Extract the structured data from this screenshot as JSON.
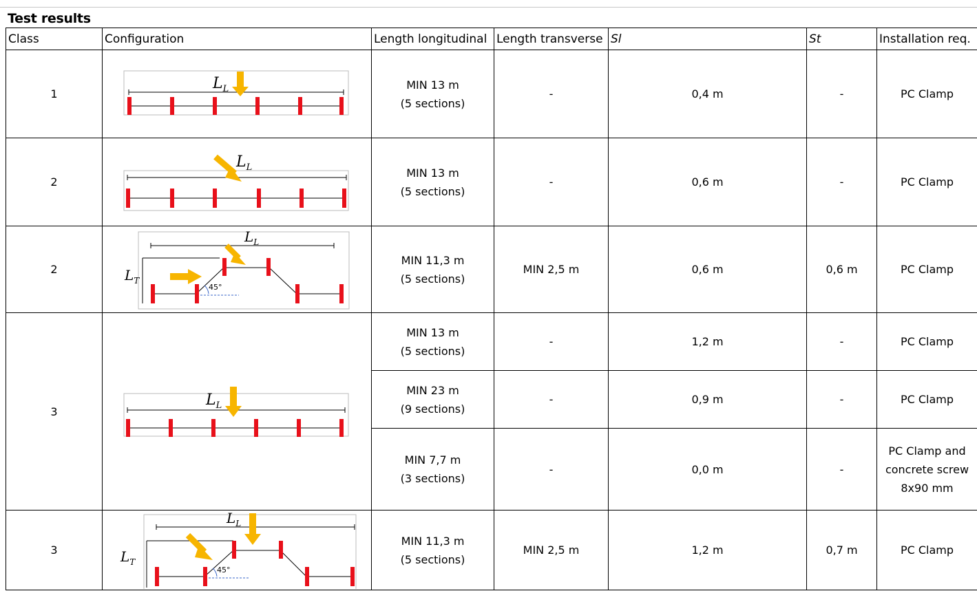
{
  "title": "Test results",
  "columns": [
    "Class",
    "Configuration",
    "Length longitudinal",
    "Length transverse",
    "Sl",
    "St",
    "Installation req."
  ],
  "diagram": {
    "label_longitudinal": "L",
    "label_transverse": "L",
    "sub_longitudinal": "L",
    "sub_transverse": "T",
    "angle": "45°",
    "colors": {
      "barrier": "#e8101a",
      "arrow": "#f7b500"
    }
  },
  "rows": [
    {
      "class": "1",
      "length_longitudinal": "MIN 13 m",
      "sections": "(5 sections)",
      "length_transverse": "-",
      "sl": "0,4 m",
      "st": "-",
      "installation": "PC Clamp"
    },
    {
      "class": "2",
      "length_longitudinal": "MIN 13 m",
      "sections": "(5 sections)",
      "length_transverse": "-",
      "sl": "0,6 m",
      "st": "-",
      "installation": "PC Clamp"
    },
    {
      "class": "2",
      "length_longitudinal": "MIN 11,3 m",
      "sections": "(5 sections)",
      "length_transverse": "MIN 2,5 m",
      "sl": "0,6 m",
      "st": "0,6 m",
      "installation": "PC Clamp"
    },
    {
      "class": "3",
      "length_longitudinal": "MIN 13 m",
      "sections": "(5 sections)",
      "length_transverse": "-",
      "sl": "1,2 m",
      "st": "-",
      "installation": "PC Clamp"
    },
    {
      "length_longitudinal": "MIN 23 m",
      "sections": "(9 sections)",
      "length_transverse": "-",
      "sl": "0,9 m",
      "st": "-",
      "installation": "PC Clamp"
    },
    {
      "length_longitudinal": "MIN 7,7 m",
      "sections": "(3 sections)",
      "length_transverse": "-",
      "sl": "0,0 m",
      "st": "-",
      "installation_lines": [
        "PC Clamp and",
        "concrete screw",
        "8x90 mm"
      ]
    },
    {
      "class": "3",
      "length_longitudinal": "MIN 11,3 m",
      "sections": "(5 sections)",
      "length_transverse": "MIN 2,5 m",
      "sl": "1,2 m",
      "st": "0,7 m",
      "installation": "PC Clamp"
    }
  ]
}
